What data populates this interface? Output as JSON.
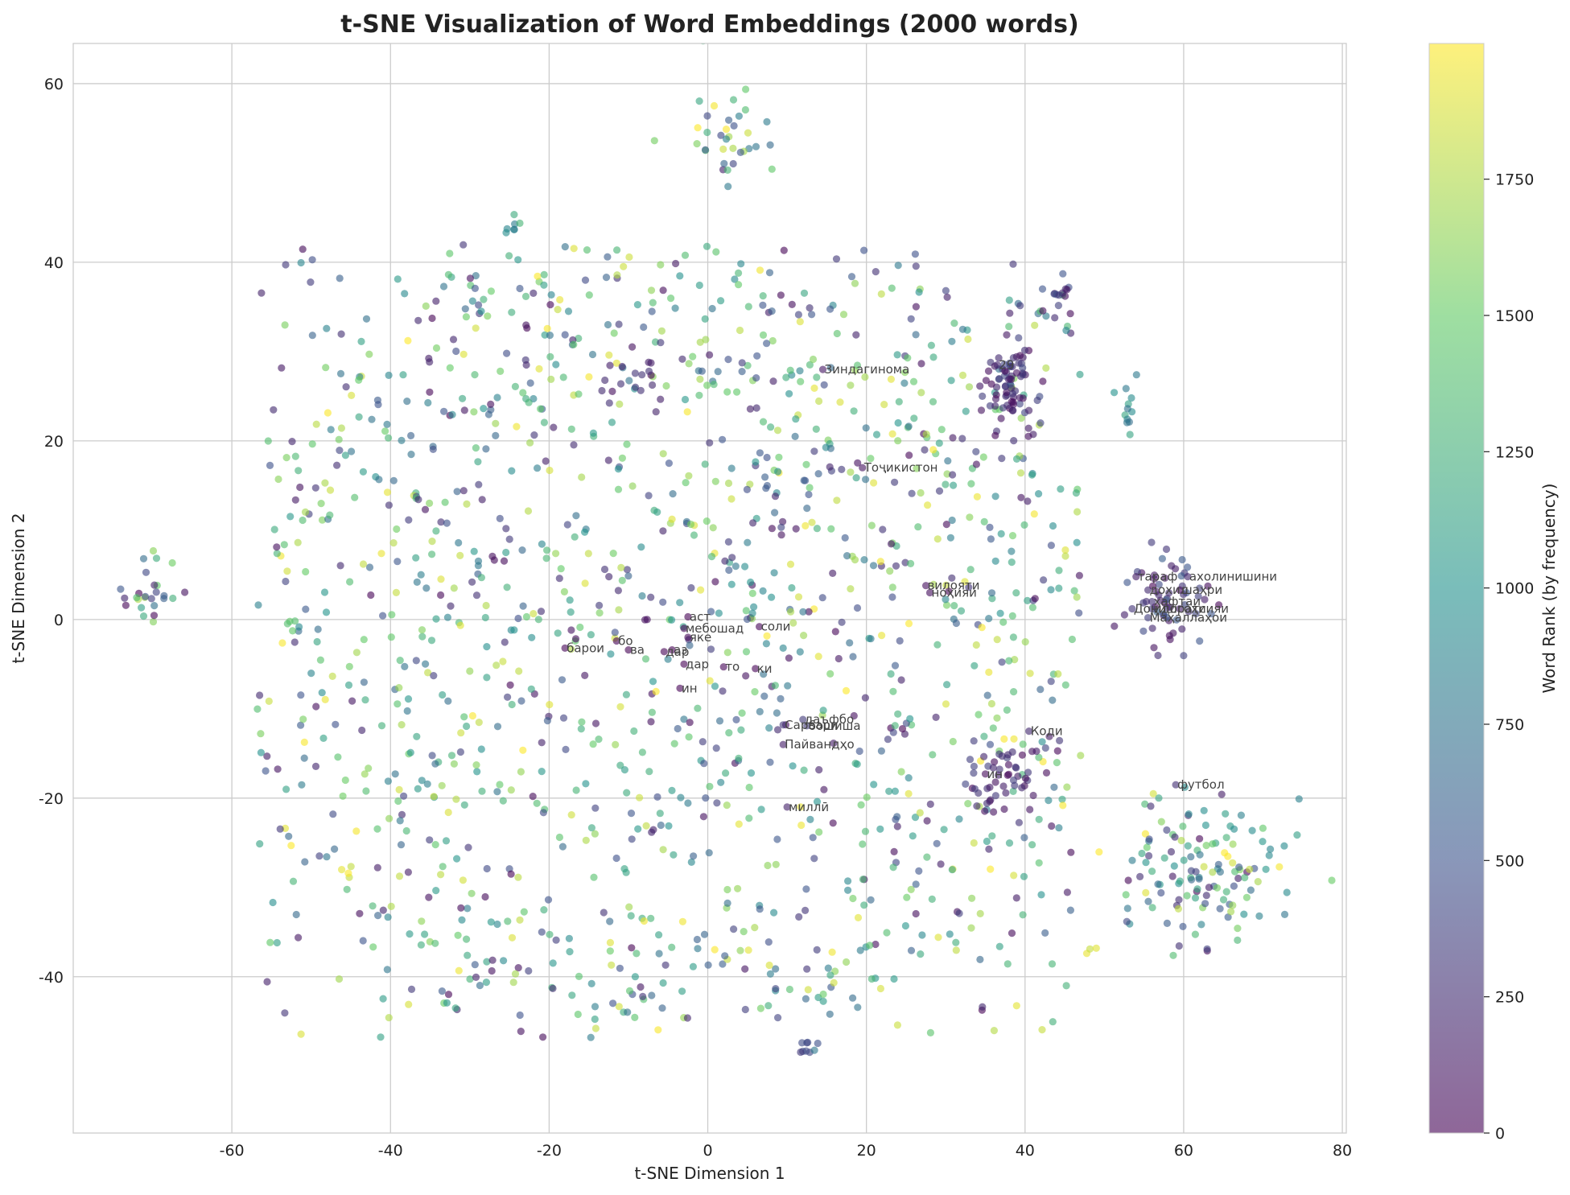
{
  "chart_data": {
    "type": "scatter",
    "title": "t-SNE Visualization of Word Embeddings (2000 words)",
    "xlabel": "t-SNE Dimension 1",
    "ylabel": "t-SNE Dimension 2",
    "xlim": [
      -80,
      80.5
    ],
    "ylim": [
      -57.5,
      64.5
    ],
    "xticks": [
      -60,
      -40,
      -20,
      0,
      20,
      40,
      60,
      80
    ],
    "yticks": [
      -40,
      -20,
      0,
      20,
      40,
      60
    ],
    "grid": true,
    "point_count": 2000,
    "colormap": "viridis",
    "colormap_stops": [
      "#440154",
      "#3b528b",
      "#21918c",
      "#5ec962",
      "#fde725"
    ],
    "point_alpha": 0.6,
    "colorbar": {
      "label": "Word Rank (by frequency)",
      "range": [
        0,
        1999
      ],
      "ticks": [
        0,
        250,
        500,
        750,
        1000,
        1250,
        1500,
        1750
      ]
    },
    "clusters": [
      {
        "cx": -70,
        "cy": 3,
        "sx": 2,
        "sy": 1.6,
        "n": 26,
        "rank": [
          0,
          1999
        ]
      },
      {
        "cx": 38,
        "cy": 27,
        "sx": 1.8,
        "sy": 3.2,
        "n": 75,
        "rank": [
          0,
          450
        ]
      },
      {
        "cx": 44,
        "cy": 36,
        "sx": 1,
        "sy": 1.2,
        "n": 14,
        "rank": [
          0,
          500
        ]
      },
      {
        "cx": 53,
        "cy": 24.5,
        "sx": 0.6,
        "sy": 2,
        "n": 12,
        "rank": [
          700,
          1200
        ]
      },
      {
        "cx": 58,
        "cy": 2,
        "sx": 2.8,
        "sy": 2.4,
        "n": 60,
        "rank": [
          0,
          600
        ]
      },
      {
        "cx": 62,
        "cy": -28,
        "sx": 6,
        "sy": 4,
        "n": 130,
        "rank": [
          0,
          1999
        ]
      },
      {
        "cx": 38,
        "cy": -18,
        "sx": 3.5,
        "sy": 3,
        "n": 50,
        "rank": [
          0,
          400
        ]
      },
      {
        "cx": 2,
        "cy": 54,
        "sx": 3,
        "sy": 3,
        "n": 35,
        "rank": [
          0,
          1999
        ]
      },
      {
        "cx": -25,
        "cy": 44,
        "sx": 1,
        "sy": 1.2,
        "n": 7,
        "rank": [
          800,
          1300
        ]
      },
      {
        "cx": 12,
        "cy": -48,
        "sx": 1.5,
        "sy": 1.2,
        "n": 9,
        "rank": [
          300,
          800
        ]
      },
      {
        "cx": -10,
        "cy": 27,
        "sx": 2,
        "sy": 2,
        "n": 18,
        "rank": [
          0,
          300
        ]
      },
      {
        "cx": 48,
        "cy": -37,
        "sx": 0.4,
        "sy": 0.2,
        "n": 3,
        "rank": [
          1800,
          1999
        ]
      }
    ],
    "background_region": {
      "x": [
        -57,
        47
      ],
      "y": [
        -47,
        42
      ],
      "n": 1560,
      "rank": [
        0,
        1999
      ]
    },
    "labeled_words": [
      {
        "text": "Зиндагинома",
        "x": 14.5,
        "y": 28,
        "rank": 120
      },
      {
        "text": "29",
        "x": 36.5,
        "y": 28.5,
        "rank": 200
      },
      {
        "text": "Тоҷикистон",
        "x": 19.5,
        "y": 17,
        "rank": 90
      },
      {
        "text": "вилояти",
        "x": 27.5,
        "y": 3.8,
        "rank": 60
      },
      {
        "text": "ноҳияи",
        "x": 28,
        "y": 3,
        "rank": 70
      },
      {
        "text": "аст",
        "x": -2.5,
        "y": 0.3,
        "rank": 2
      },
      {
        "text": "мебошад",
        "x": -3,
        "y": -1,
        "rank": 10
      },
      {
        "text": "соли",
        "x": 6.5,
        "y": -0.8,
        "rank": 15
      },
      {
        "text": "яке",
        "x": -2.5,
        "y": -2,
        "rank": 25
      },
      {
        "text": "барои",
        "x": -18,
        "y": -3.2,
        "rank": 12
      },
      {
        "text": "бо",
        "x": -11.5,
        "y": -2.4,
        "rank": 8
      },
      {
        "text": "ва",
        "x": -10,
        "y": -3.4,
        "rank": 1
      },
      {
        "text": "дар",
        "x": -5.5,
        "y": -3.6,
        "rank": 0
      },
      {
        "text": "аз",
        "x": -4.5,
        "y": -3.4,
        "rank": 3
      },
      {
        "text": "дар",
        "x": -3,
        "y": -5,
        "rank": 4
      },
      {
        "text": "то",
        "x": 2,
        "y": -5.3,
        "rank": 18
      },
      {
        "text": "ки",
        "x": 6,
        "y": -5.5,
        "rank": 6
      },
      {
        "text": "ин",
        "x": -3.5,
        "y": -7.7,
        "rank": 5
      },
      {
        "text": "Сарвари",
        "x": 9.5,
        "y": -11.8,
        "rank": 300
      },
      {
        "text": "даъфбо",
        "x": 12,
        "y": -11.2,
        "rank": 320
      },
      {
        "text": "бошиша",
        "x": 12.5,
        "y": -11.9,
        "rank": 330
      },
      {
        "text": "Пайвандҳо",
        "x": 9.5,
        "y": -14,
        "rank": 150
      },
      {
        "text": "Коди",
        "x": 40.5,
        "y": -12.5,
        "rank": 220
      },
      {
        "text": "ин",
        "x": 35,
        "y": -17.3,
        "rank": 40
      },
      {
        "text": "миллӣ",
        "x": 10,
        "y": -21,
        "rank": 180
      },
      {
        "text": "футбол",
        "x": 59,
        "y": -18.5,
        "rank": 260
      },
      {
        "text": "тараф",
        "x": 54,
        "y": 4.8,
        "rank": 140
      },
      {
        "text": "ахолинишини",
        "x": 60.5,
        "y": 4.8,
        "rank": 200
      },
      {
        "text": "дохил",
        "x": 55.5,
        "y": 3.3,
        "rank": 230
      },
      {
        "text": "шаҳри",
        "x": 59.5,
        "y": 3.3,
        "rank": 45
      },
      {
        "text": "ҳафтаи",
        "x": 56,
        "y": 2,
        "rank": 260
      },
      {
        "text": "Донишгоҳи",
        "x": 53.5,
        "y": 1.2,
        "rank": 290
      },
      {
        "text": "идоратсияи",
        "x": 56,
        "y": 1.2,
        "rank": 310
      },
      {
        "text": "Маҳаллаҳои",
        "x": 55.5,
        "y": 0.2,
        "rank": 340
      }
    ]
  }
}
